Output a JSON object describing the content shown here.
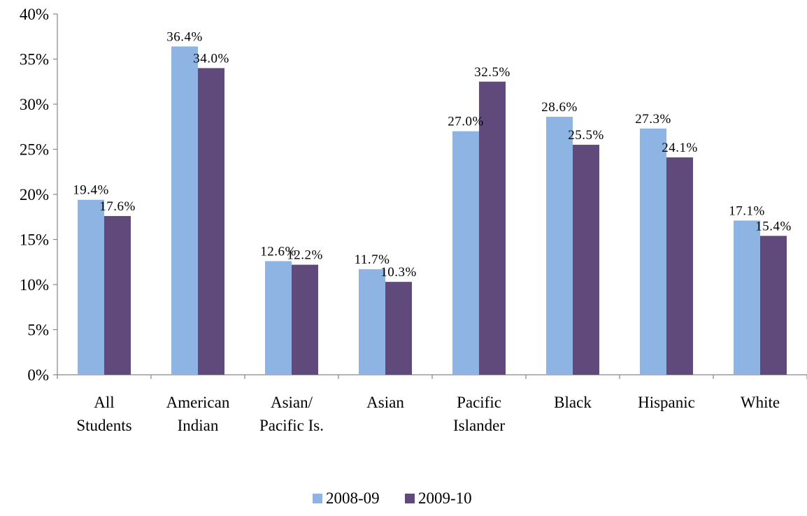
{
  "chart_data": {
    "type": "bar",
    "categories": [
      [
        "All",
        "Students"
      ],
      [
        "American",
        "Indian"
      ],
      [
        "Asian/",
        "Pacific Is."
      ],
      [
        "Asian"
      ],
      [
        "Pacific",
        "Islander"
      ],
      [
        "Black"
      ],
      [
        "Hispanic"
      ],
      [
        "White"
      ]
    ],
    "series": [
      {
        "name": "2008-09",
        "color": "#8EB4E3",
        "values": [
          19.4,
          36.4,
          12.6,
          11.7,
          27.0,
          28.6,
          27.3,
          17.1
        ],
        "labels": [
          "19.4%",
          "36.4%",
          "12.6%",
          "11.7%",
          "27.0%",
          "28.6%",
          "27.3%",
          "17.1%"
        ]
      },
      {
        "name": "2009-10",
        "color": "#604A7B",
        "values": [
          17.6,
          34.0,
          12.2,
          10.3,
          32.5,
          25.5,
          24.1,
          15.4
        ],
        "labels": [
          "17.6%",
          "34.0%",
          "12.2%",
          "10.3%",
          "32.5%",
          "25.5%",
          "24.1%",
          "15.4%"
        ]
      }
    ],
    "ylim": [
      0,
      40
    ],
    "y_ticks": [
      0,
      5,
      10,
      15,
      20,
      25,
      30,
      35,
      40
    ],
    "y_tick_labels": [
      "0%",
      "5%",
      "10%",
      "15%",
      "20%",
      "25%",
      "30%",
      "35%",
      "40%"
    ],
    "grid": false,
    "legend_position": "bottom"
  }
}
